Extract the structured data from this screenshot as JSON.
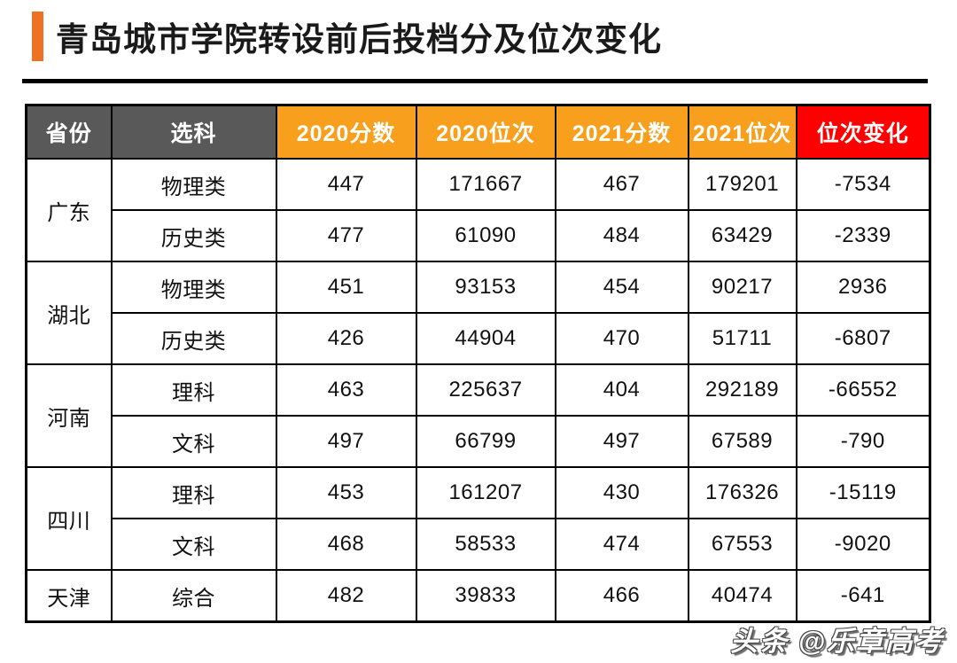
{
  "page": {
    "title": "青岛城市学院转设前后投档分及位次变化",
    "watermark": "头条 @乐章高考"
  },
  "colors": {
    "title_accent": "#ee7224",
    "header_dark": "#595959",
    "header_orange": "#f8a01d",
    "header_red": "#fe0000",
    "border": "#000000",
    "background": "#ffffff"
  },
  "table": {
    "columns": [
      {
        "label": "省份",
        "style": "dark"
      },
      {
        "label": "选科",
        "style": "dark"
      },
      {
        "label": "2020分数",
        "style": "orange"
      },
      {
        "label": "2020位次",
        "style": "orange"
      },
      {
        "label": "2021分数",
        "style": "orange"
      },
      {
        "label": "2021位次",
        "style": "orange"
      },
      {
        "label": "位次变化",
        "style": "red"
      }
    ],
    "groups": [
      {
        "province": "广东",
        "rows": [
          {
            "subject": "物理类",
            "score2020": "447",
            "rank2020": "171667",
            "score2021": "467",
            "rank2021": "179201",
            "rank_change": "-7534"
          },
          {
            "subject": "历史类",
            "score2020": "477",
            "rank2020": "61090",
            "score2021": "484",
            "rank2021": "63429",
            "rank_change": "-2339"
          }
        ]
      },
      {
        "province": "湖北",
        "rows": [
          {
            "subject": "物理类",
            "score2020": "451",
            "rank2020": "93153",
            "score2021": "454",
            "rank2021": "90217",
            "rank_change": "2936"
          },
          {
            "subject": "历史类",
            "score2020": "426",
            "rank2020": "44904",
            "score2021": "470",
            "rank2021": "51711",
            "rank_change": "-6807"
          }
        ]
      },
      {
        "province": "河南",
        "rows": [
          {
            "subject": "理科",
            "score2020": "463",
            "rank2020": "225637",
            "score2021": "404",
            "rank2021": "292189",
            "rank_change": "-66552"
          },
          {
            "subject": "文科",
            "score2020": "497",
            "rank2020": "66799",
            "score2021": "497",
            "rank2021": "67589",
            "rank_change": "-790"
          }
        ]
      },
      {
        "province": "四川",
        "rows": [
          {
            "subject": "理科",
            "score2020": "453",
            "rank2020": "161207",
            "score2021": "430",
            "rank2021": "176326",
            "rank_change": "-15119"
          },
          {
            "subject": "文科",
            "score2020": "468",
            "rank2020": "58533",
            "score2021": "474",
            "rank2021": "67553",
            "rank_change": "-9020"
          }
        ]
      },
      {
        "province": "天津",
        "rows": [
          {
            "subject": "综合",
            "score2020": "482",
            "rank2020": "39833",
            "score2021": "466",
            "rank2021": "40474",
            "rank_change": "-641"
          }
        ]
      }
    ]
  },
  "chart_data": {
    "type": "table",
    "title": "青岛城市学院转设前后投档分及位次变化",
    "columns": [
      "省份",
      "选科",
      "2020分数",
      "2020位次",
      "2021分数",
      "2021位次",
      "位次变化"
    ],
    "rows": [
      [
        "广东",
        "物理类",
        447,
        171667,
        467,
        179201,
        -7534
      ],
      [
        "广东",
        "历史类",
        477,
        61090,
        484,
        63429,
        -2339
      ],
      [
        "湖北",
        "物理类",
        451,
        93153,
        454,
        90217,
        2936
      ],
      [
        "湖北",
        "历史类",
        426,
        44904,
        470,
        51711,
        -6807
      ],
      [
        "河南",
        "理科",
        463,
        225637,
        404,
        292189,
        -66552
      ],
      [
        "河南",
        "文科",
        497,
        66799,
        497,
        67589,
        -790
      ],
      [
        "四川",
        "理科",
        453,
        161207,
        430,
        176326,
        -15119
      ],
      [
        "四川",
        "文科",
        468,
        58533,
        474,
        67553,
        -9020
      ],
      [
        "天津",
        "综合",
        482,
        39833,
        466,
        40474,
        -641
      ]
    ]
  }
}
